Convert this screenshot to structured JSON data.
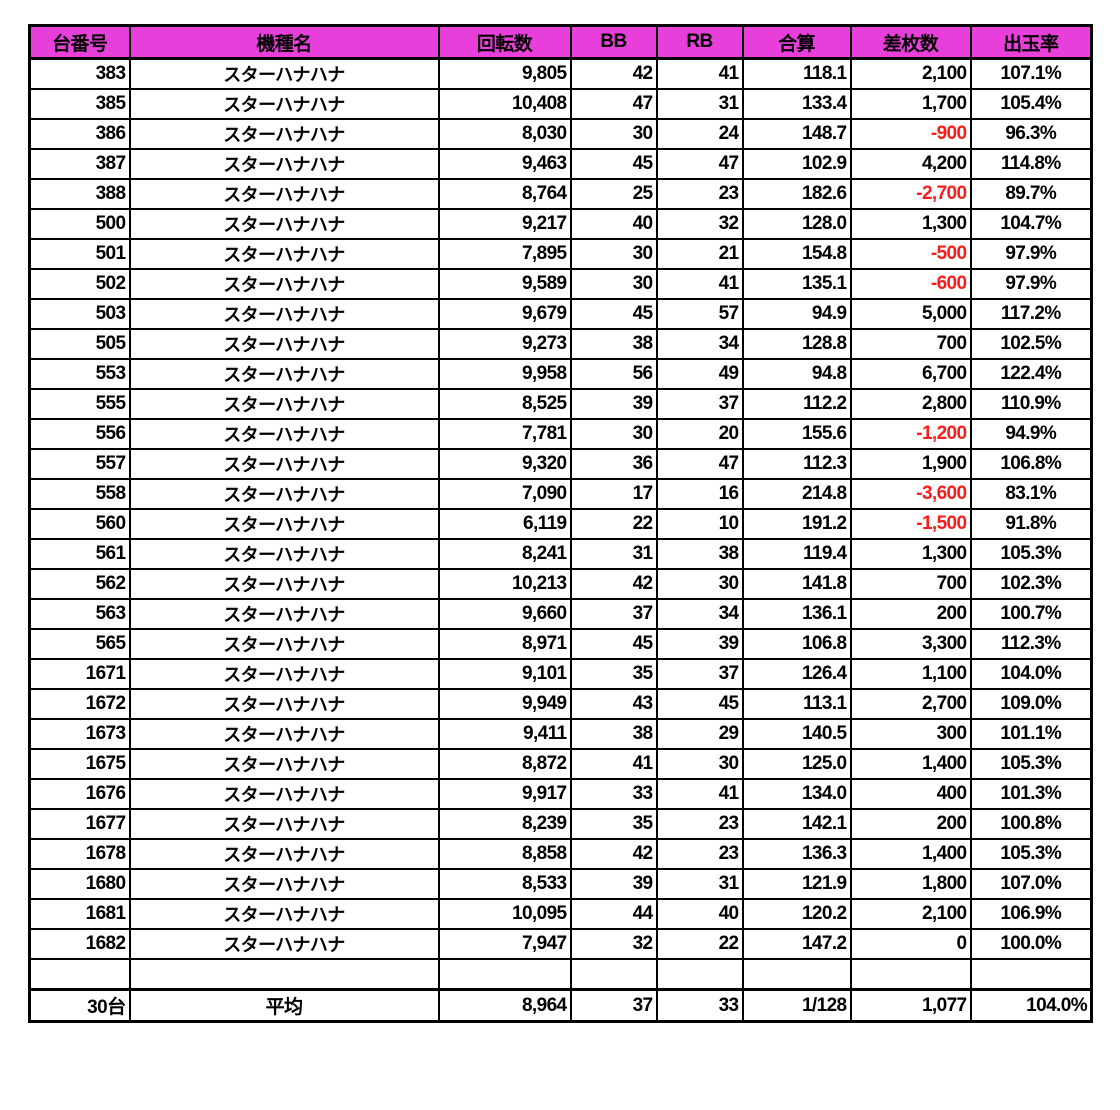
{
  "colors": {
    "header_bg": "#e83fdb",
    "negative": "#ff1a1a"
  },
  "headers": [
    "台番号",
    "機種名",
    "回転数",
    "BB",
    "RB",
    "合算",
    "差枚数",
    "出玉率"
  ],
  "rows": [
    [
      "383",
      "スターハナハナ",
      "9,805",
      "42",
      "41",
      "118.1",
      "2,100",
      "107.1%"
    ],
    [
      "385",
      "スターハナハナ",
      "10,408",
      "47",
      "31",
      "133.4",
      "1,700",
      "105.4%"
    ],
    [
      "386",
      "スターハナハナ",
      "8,030",
      "30",
      "24",
      "148.7",
      "-900",
      "96.3%"
    ],
    [
      "387",
      "スターハナハナ",
      "9,463",
      "45",
      "47",
      "102.9",
      "4,200",
      "114.8%"
    ],
    [
      "388",
      "スターハナハナ",
      "8,764",
      "25",
      "23",
      "182.6",
      "-2,700",
      "89.7%"
    ],
    [
      "500",
      "スターハナハナ",
      "9,217",
      "40",
      "32",
      "128.0",
      "1,300",
      "104.7%"
    ],
    [
      "501",
      "スターハナハナ",
      "7,895",
      "30",
      "21",
      "154.8",
      "-500",
      "97.9%"
    ],
    [
      "502",
      "スターハナハナ",
      "9,589",
      "30",
      "41",
      "135.1",
      "-600",
      "97.9%"
    ],
    [
      "503",
      "スターハナハナ",
      "9,679",
      "45",
      "57",
      "94.9",
      "5,000",
      "117.2%"
    ],
    [
      "505",
      "スターハナハナ",
      "9,273",
      "38",
      "34",
      "128.8",
      "700",
      "102.5%"
    ],
    [
      "553",
      "スターハナハナ",
      "9,958",
      "56",
      "49",
      "94.8",
      "6,700",
      "122.4%"
    ],
    [
      "555",
      "スターハナハナ",
      "8,525",
      "39",
      "37",
      "112.2",
      "2,800",
      "110.9%"
    ],
    [
      "556",
      "スターハナハナ",
      "7,781",
      "30",
      "20",
      "155.6",
      "-1,200",
      "94.9%"
    ],
    [
      "557",
      "スターハナハナ",
      "9,320",
      "36",
      "47",
      "112.3",
      "1,900",
      "106.8%"
    ],
    [
      "558",
      "スターハナハナ",
      "7,090",
      "17",
      "16",
      "214.8",
      "-3,600",
      "83.1%"
    ],
    [
      "560",
      "スターハナハナ",
      "6,119",
      "22",
      "10",
      "191.2",
      "-1,500",
      "91.8%"
    ],
    [
      "561",
      "スターハナハナ",
      "8,241",
      "31",
      "38",
      "119.4",
      "1,300",
      "105.3%"
    ],
    [
      "562",
      "スターハナハナ",
      "10,213",
      "42",
      "30",
      "141.8",
      "700",
      "102.3%"
    ],
    [
      "563",
      "スターハナハナ",
      "9,660",
      "37",
      "34",
      "136.1",
      "200",
      "100.7%"
    ],
    [
      "565",
      "スターハナハナ",
      "8,971",
      "45",
      "39",
      "106.8",
      "3,300",
      "112.3%"
    ],
    [
      "1671",
      "スターハナハナ",
      "9,101",
      "35",
      "37",
      "126.4",
      "1,100",
      "104.0%"
    ],
    [
      "1672",
      "スターハナハナ",
      "9,949",
      "43",
      "45",
      "113.1",
      "2,700",
      "109.0%"
    ],
    [
      "1673",
      "スターハナハナ",
      "9,411",
      "38",
      "29",
      "140.5",
      "300",
      "101.1%"
    ],
    [
      "1675",
      "スターハナハナ",
      "8,872",
      "41",
      "30",
      "125.0",
      "1,400",
      "105.3%"
    ],
    [
      "1676",
      "スターハナハナ",
      "9,917",
      "33",
      "41",
      "134.0",
      "400",
      "101.3%"
    ],
    [
      "1677",
      "スターハナハナ",
      "8,239",
      "35",
      "23",
      "142.1",
      "200",
      "100.8%"
    ],
    [
      "1678",
      "スターハナハナ",
      "8,858",
      "42",
      "23",
      "136.3",
      "1,400",
      "105.3%"
    ],
    [
      "1680",
      "スターハナハナ",
      "8,533",
      "39",
      "31",
      "121.9",
      "1,800",
      "107.0%"
    ],
    [
      "1681",
      "スターハナハナ",
      "10,095",
      "44",
      "40",
      "120.2",
      "2,100",
      "106.9%"
    ],
    [
      "1682",
      "スターハナハナ",
      "7,947",
      "32",
      "22",
      "147.2",
      "0",
      "100.0%"
    ]
  ],
  "footer": [
    "30台",
    "平均",
    "8,964",
    "37",
    "33",
    "1/128",
    "1,077",
    "104.0%"
  ]
}
